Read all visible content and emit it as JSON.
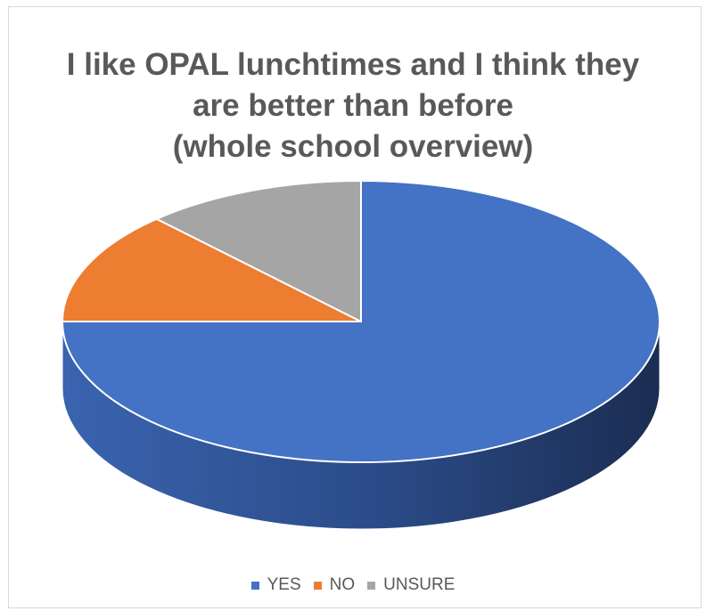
{
  "chart_data": {
    "type": "pie",
    "title_lines": [
      "I like OPAL lunchtimes and I think they",
      "are better than before",
      "(whole school overview)"
    ],
    "slices": [
      {
        "label": "YES",
        "value": 75,
        "color": "#4472C4",
        "side_color": "#2F5597"
      },
      {
        "label": "NO",
        "value": 13,
        "color": "#ED7D31",
        "side_color": "#B35A1F"
      },
      {
        "label": "UNSURE",
        "value": 12,
        "color": "#A5A5A5",
        "side_color": "#7F7F7F"
      }
    ],
    "start_angle_deg": 0,
    "direction": "clockwise",
    "style": "3d",
    "legend_position": "bottom"
  }
}
